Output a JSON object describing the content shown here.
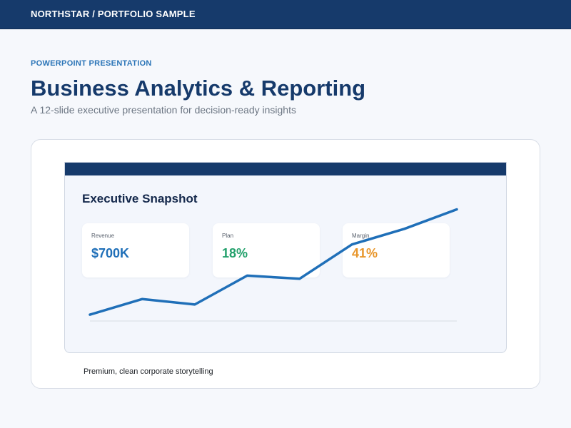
{
  "header": {
    "brand": "NORTHSTAR  /  PORTFOLIO SAMPLE"
  },
  "hero": {
    "eyebrow": "POWERPOINT PRESENTATION",
    "title": "Business Analytics & Reporting",
    "subtitle": "A 12-slide executive presentation for decision-ready insights"
  },
  "slide": {
    "title": "Executive Snapshot",
    "kpis": [
      {
        "label": "Revenue",
        "value": "$700K",
        "color": "#1f6fb8"
      },
      {
        "label": "Plan",
        "value": "18%",
        "color": "#22a06b"
      },
      {
        "label": "Margin",
        "value": "41%",
        "color": "#e8962b"
      }
    ]
  },
  "chart_data": {
    "type": "line",
    "title": "",
    "xlabel": "",
    "ylabel": "",
    "x": [
      1,
      2,
      3,
      4,
      5,
      6,
      7,
      8
    ],
    "series": [
      {
        "values": [
          10,
          30,
          23,
          60,
          56,
          100,
          120,
          145
        ]
      }
    ],
    "ylim": [
      0,
      150
    ],
    "line_color": "#1f6fb8",
    "grid": false
  },
  "caption": "Premium, clean corporate storytelling"
}
